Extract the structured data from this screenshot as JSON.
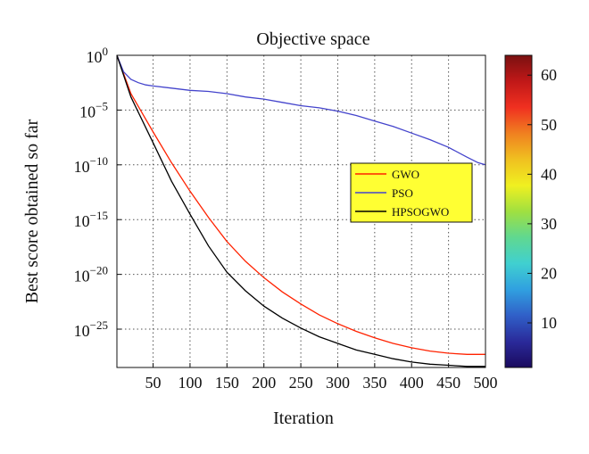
{
  "chart_data": {
    "type": "line",
    "title": "Objective space",
    "xlabel": "Iteration",
    "ylabel": "Best score obtained so far",
    "xlim": [
      1,
      500
    ],
    "ylim_log10": [
      -28.5,
      0
    ],
    "log_y": true,
    "grid": true,
    "x_ticks": [
      50,
      100,
      150,
      200,
      250,
      300,
      350,
      400,
      450,
      500
    ],
    "y_ticks": [
      {
        "exp": 0,
        "base": "10",
        "sup": "0"
      },
      {
        "exp": -5,
        "base": "10",
        "sup": "−5"
      },
      {
        "exp": -10,
        "base": "10",
        "sup": "−10"
      },
      {
        "exp": -15,
        "base": "10",
        "sup": "−15"
      },
      {
        "exp": -20,
        "base": "10",
        "sup": "−20"
      },
      {
        "exp": -25,
        "base": "10",
        "sup": "−25"
      }
    ],
    "legend": {
      "position": "right-middle",
      "background": "#ffff33"
    },
    "series": [
      {
        "name": "GWO",
        "color": "#ff2200",
        "x": [
          1,
          20,
          50,
          75,
          100,
          125,
          150,
          175,
          200,
          225,
          250,
          275,
          300,
          325,
          350,
          375,
          400,
          425,
          450,
          475,
          500
        ],
        "log10_y": [
          0,
          -3.5,
          -7,
          -9.8,
          -12.4,
          -14.8,
          -17.0,
          -18.8,
          -20.3,
          -21.6,
          -22.7,
          -23.7,
          -24.5,
          -25.2,
          -25.8,
          -26.3,
          -26.7,
          -27.0,
          -27.2,
          -27.3,
          -27.3
        ]
      },
      {
        "name": "PSO",
        "color": "#4444cc",
        "x": [
          1,
          10,
          20,
          30,
          40,
          50,
          75,
          100,
          125,
          150,
          175,
          200,
          225,
          250,
          275,
          300,
          325,
          350,
          375,
          400,
          425,
          450,
          475,
          490,
          500
        ],
        "log10_y": [
          0,
          -1.5,
          -2.2,
          -2.5,
          -2.7,
          -2.8,
          -3.0,
          -3.2,
          -3.3,
          -3.5,
          -3.8,
          -4.0,
          -4.3,
          -4.6,
          -4.8,
          -5.1,
          -5.5,
          -6.0,
          -6.5,
          -7.1,
          -7.7,
          -8.4,
          -9.3,
          -9.8,
          -10.0
        ]
      },
      {
        "name": "HPSOGWO",
        "color": "#000000",
        "x": [
          1,
          20,
          50,
          75,
          100,
          125,
          150,
          175,
          200,
          225,
          250,
          275,
          300,
          325,
          350,
          375,
          400,
          425,
          450,
          475,
          500
        ],
        "log10_y": [
          0,
          -3.8,
          -8.0,
          -11.5,
          -14.5,
          -17.4,
          -19.8,
          -21.5,
          -22.9,
          -24.0,
          -24.9,
          -25.7,
          -26.3,
          -26.9,
          -27.3,
          -27.7,
          -28.0,
          -28.2,
          -28.3,
          -28.4,
          -28.4
        ]
      }
    ],
    "colorbar": {
      "ticks": [
        10,
        20,
        30,
        40,
        50,
        60
      ],
      "range": [
        1,
        64
      ],
      "colors": [
        "#1a0a5e",
        "#2a2a9a",
        "#3060c8",
        "#30a0e0",
        "#40d0d0",
        "#60d890",
        "#a0e040",
        "#f0f020",
        "#f0c020",
        "#f08020",
        "#f03020",
        "#c01818",
        "#7a1010"
      ]
    }
  }
}
